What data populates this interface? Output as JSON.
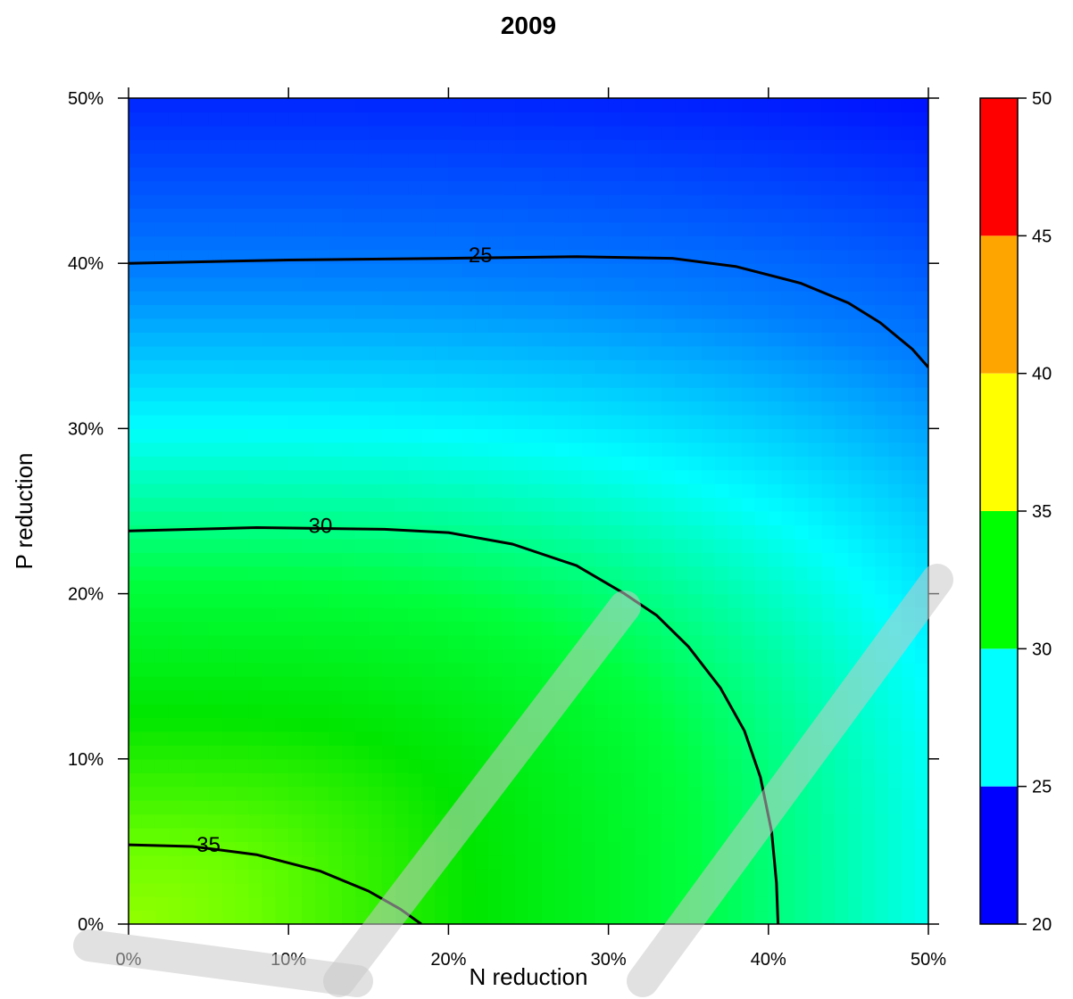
{
  "chart_data": {
    "type": "heatmap",
    "title": "2009",
    "xlabel": "N reduction",
    "ylabel": "P reduction",
    "xlim": [
      0,
      50
    ],
    "ylim": [
      0,
      50
    ],
    "x_ticks": [
      0,
      10,
      20,
      30,
      40,
      50
    ],
    "y_ticks": [
      0,
      10,
      20,
      30,
      40,
      50
    ],
    "x_tick_labels": [
      "0%",
      "10%",
      "20%",
      "30%",
      "40%",
      "50%"
    ],
    "y_tick_labels": [
      "0%",
      "10%",
      "20%",
      "30%",
      "40%",
      "50%"
    ],
    "grid": false,
    "colorbar": {
      "range": [
        20,
        50
      ],
      "breaks": [
        20,
        25,
        30,
        35,
        40,
        45,
        50
      ],
      "break_labels": [
        "20",
        "25",
        "30",
        "35",
        "40",
        "45",
        "50"
      ],
      "colors": [
        "#0000ff",
        "#00ffff",
        "#00ff00",
        "#ffff00",
        "#ffa500",
        "#ff0000"
      ]
    },
    "contours": [
      {
        "level": 25,
        "label": "25",
        "label_at": [
          22,
          40.5
        ],
        "points": [
          [
            0,
            40.0
          ],
          [
            10,
            40.2
          ],
          [
            20,
            40.3
          ],
          [
            28,
            40.4
          ],
          [
            34,
            40.3
          ],
          [
            38,
            39.8
          ],
          [
            42,
            38.8
          ],
          [
            45,
            37.6
          ],
          [
            47,
            36.4
          ],
          [
            49,
            34.8
          ],
          [
            50,
            33.7
          ]
        ]
      },
      {
        "level": 30,
        "label": "30",
        "label_at": [
          12,
          24.1
        ],
        "points": [
          [
            0,
            23.8
          ],
          [
            8,
            24.0
          ],
          [
            16,
            23.9
          ],
          [
            20,
            23.7
          ],
          [
            24,
            23.0
          ],
          [
            28,
            21.7
          ],
          [
            31,
            20.0
          ],
          [
            33,
            18.7
          ],
          [
            35,
            16.8
          ],
          [
            37,
            14.3
          ],
          [
            38.5,
            11.7
          ],
          [
            39.5,
            8.9
          ],
          [
            40.2,
            5.6
          ],
          [
            40.5,
            2.5
          ],
          [
            40.6,
            0
          ]
        ]
      },
      {
        "level": 35,
        "label": "35",
        "label_at": [
          5,
          4.8
        ],
        "points": [
          [
            0,
            4.8
          ],
          [
            4,
            4.7
          ],
          [
            8,
            4.2
          ],
          [
            12,
            3.2
          ],
          [
            15,
            2.0
          ],
          [
            17,
            0.9
          ],
          [
            18.3,
            0
          ]
        ]
      }
    ]
  }
}
